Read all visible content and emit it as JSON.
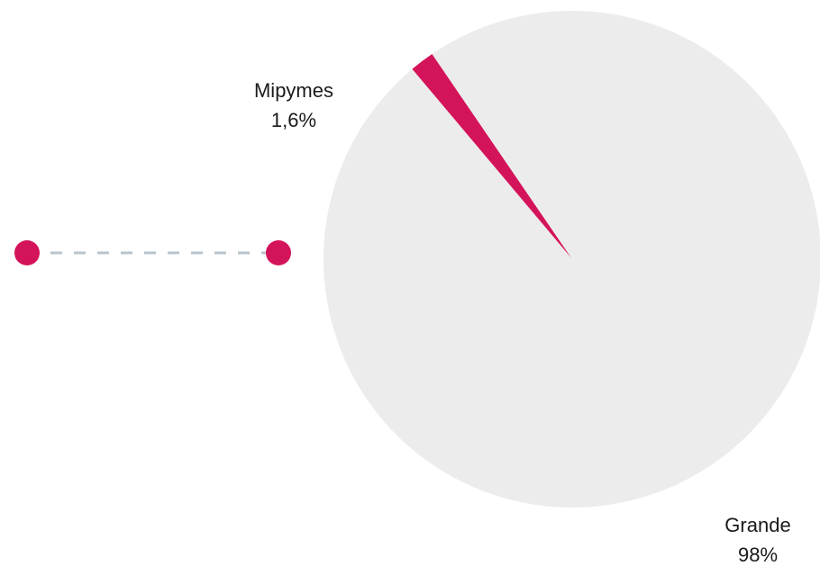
{
  "chart_data": {
    "type": "pie",
    "slices": [
      {
        "name": "Mipymes",
        "value": 1.6,
        "label": "1,6%",
        "color": "#d4145a"
      },
      {
        "name": "Grande",
        "value": 98.4,
        "label": "98%",
        "color": "#ececec"
      }
    ]
  },
  "decoration": {
    "dot_color": "#d4145a",
    "line_color": "#b8c4cc"
  }
}
